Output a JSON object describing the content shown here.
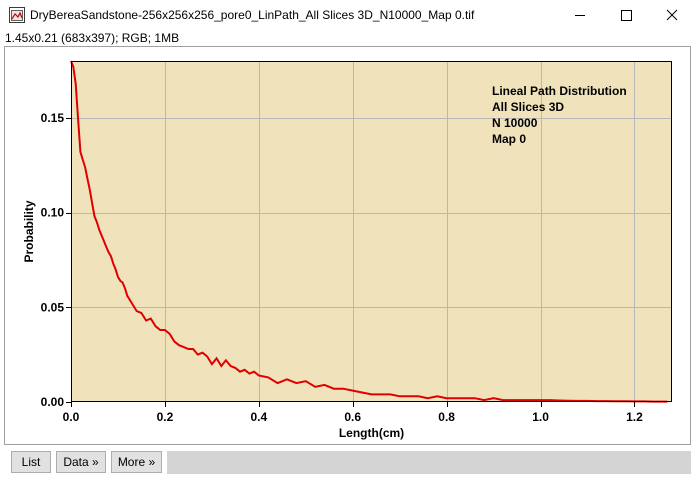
{
  "window": {
    "title": "DryBereaSandstone-256x256x256_pore0_LinPath_All Slices 3D_N10000_Map 0.tif",
    "info": "1.45x0.21   (683x397); RGB; 1MB"
  },
  "buttons": {
    "list": "List",
    "data": "Data »",
    "more": "More »"
  },
  "chart_data": {
    "type": "line",
    "title": "",
    "xlabel": "Length(cm)",
    "ylabel": "Probability",
    "xlim": [
      0,
      1.28
    ],
    "ylim": [
      0,
      0.18
    ],
    "x_ticks": [
      0.0,
      0.2,
      0.4,
      0.6,
      0.8,
      1.0,
      1.2
    ],
    "x_tick_labels": [
      "0.0",
      "0.2",
      "0.4",
      "0.6",
      "0.8",
      "1.0",
      "1.2"
    ],
    "y_ticks": [
      0.0,
      0.05,
      0.1,
      0.15
    ],
    "y_tick_labels": [
      "0.00",
      "0.05",
      "0.10",
      "0.15"
    ],
    "grid": true,
    "annotation_lines": [
      "Lineal Path Distribution",
      "All Slices 3D",
      "N 10000",
      "Map 0"
    ],
    "colors": {
      "plot_background": "#f0e3bc",
      "line": "#e00000",
      "grid": "#b8b8b8"
    },
    "series": [
      {
        "x": [
          0.0,
          0.005,
          0.01,
          0.015,
          0.02,
          0.025,
          0.03,
          0.035,
          0.04,
          0.045,
          0.05,
          0.055,
          0.06,
          0.065,
          0.07,
          0.075,
          0.08,
          0.085,
          0.09,
          0.095,
          0.1,
          0.105,
          0.11,
          0.115,
          0.12,
          0.125,
          0.13,
          0.14,
          0.15,
          0.16,
          0.17,
          0.18,
          0.19,
          0.2,
          0.21,
          0.22,
          0.23,
          0.24,
          0.25,
          0.26,
          0.27,
          0.28,
          0.29,
          0.3,
          0.31,
          0.32,
          0.33,
          0.34,
          0.35,
          0.36,
          0.37,
          0.38,
          0.39,
          0.4,
          0.42,
          0.44,
          0.46,
          0.48,
          0.5,
          0.52,
          0.54,
          0.56,
          0.58,
          0.6,
          0.62,
          0.64,
          0.66,
          0.68,
          0.7,
          0.72,
          0.74,
          0.76,
          0.78,
          0.8,
          0.82,
          0.84,
          0.86,
          0.88,
          0.9,
          0.92,
          0.94,
          0.96,
          0.98,
          1.0,
          1.02,
          1.04,
          1.06,
          1.08,
          1.1,
          1.12,
          1.14,
          1.16,
          1.18,
          1.2,
          1.22,
          1.24,
          1.26,
          1.27
        ],
        "y": [
          0.18,
          0.177,
          0.168,
          0.15,
          0.132,
          0.128,
          0.124,
          0.118,
          0.112,
          0.105,
          0.098,
          0.095,
          0.091,
          0.088,
          0.085,
          0.082,
          0.079,
          0.077,
          0.073,
          0.07,
          0.066,
          0.064,
          0.063,
          0.06,
          0.056,
          0.054,
          0.052,
          0.048,
          0.047,
          0.043,
          0.044,
          0.04,
          0.038,
          0.038,
          0.036,
          0.032,
          0.03,
          0.029,
          0.028,
          0.028,
          0.025,
          0.026,
          0.024,
          0.02,
          0.023,
          0.019,
          0.022,
          0.019,
          0.018,
          0.016,
          0.017,
          0.015,
          0.016,
          0.014,
          0.013,
          0.01,
          0.012,
          0.01,
          0.011,
          0.008,
          0.009,
          0.007,
          0.007,
          0.006,
          0.005,
          0.004,
          0.004,
          0.004,
          0.003,
          0.003,
          0.003,
          0.002,
          0.003,
          0.002,
          0.002,
          0.002,
          0.002,
          0.001,
          0.002,
          0.001,
          0.001,
          0.001,
          0.001,
          0.001,
          0.001,
          0.0008,
          0.0007,
          0.0006,
          0.0006,
          0.0005,
          0.0005,
          0.0004,
          0.0004,
          0.0003,
          0.0003,
          0.0002,
          0.0002,
          0.0002
        ]
      }
    ]
  }
}
